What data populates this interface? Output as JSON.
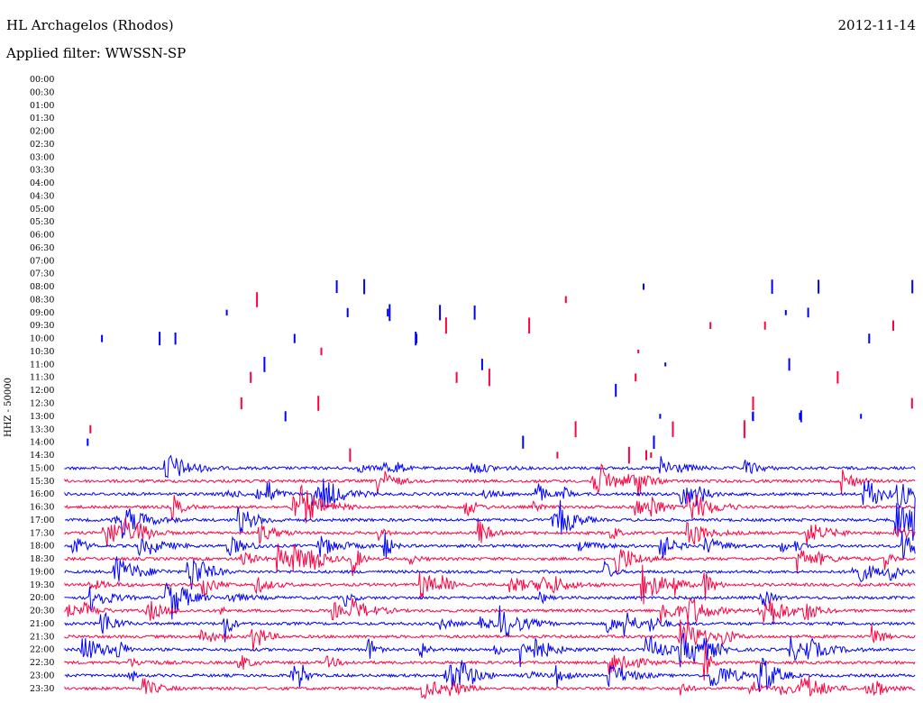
{
  "header": {
    "station": "HL Archagelos (Rhodos)",
    "date": "2012-11-14",
    "filter": "Applied filter: WWSSN-SP"
  },
  "chart_data": {
    "type": "line",
    "title": "HL Archagelos (Rhodos)",
    "ylabel": "HHZ - 50000",
    "xlabel": "",
    "row_labels": [
      "00:00",
      "00:30",
      "01:00",
      "01:30",
      "02:00",
      "02:30",
      "03:00",
      "03:30",
      "04:00",
      "04:30",
      "05:00",
      "05:30",
      "06:00",
      "06:30",
      "07:00",
      "07:30",
      "08:00",
      "08:30",
      "09:00",
      "09:30",
      "10:00",
      "10:30",
      "11:00",
      "11:30",
      "12:00",
      "12:30",
      "13:00",
      "13:30",
      "14:00",
      "14:30",
      "15:00",
      "15:30",
      "16:00",
      "16:30",
      "17:00",
      "17:30",
      "18:00",
      "18:30",
      "19:00",
      "19:30",
      "20:00",
      "20:30",
      "21:00",
      "21:30",
      "22:00",
      "22:30",
      "23:00",
      "23:30"
    ],
    "colors": {
      "odd_rows": "#0000ff",
      "even_rows": "#ff0040"
    },
    "continuous_from_row": 30,
    "sparse_from_row": 16
  }
}
